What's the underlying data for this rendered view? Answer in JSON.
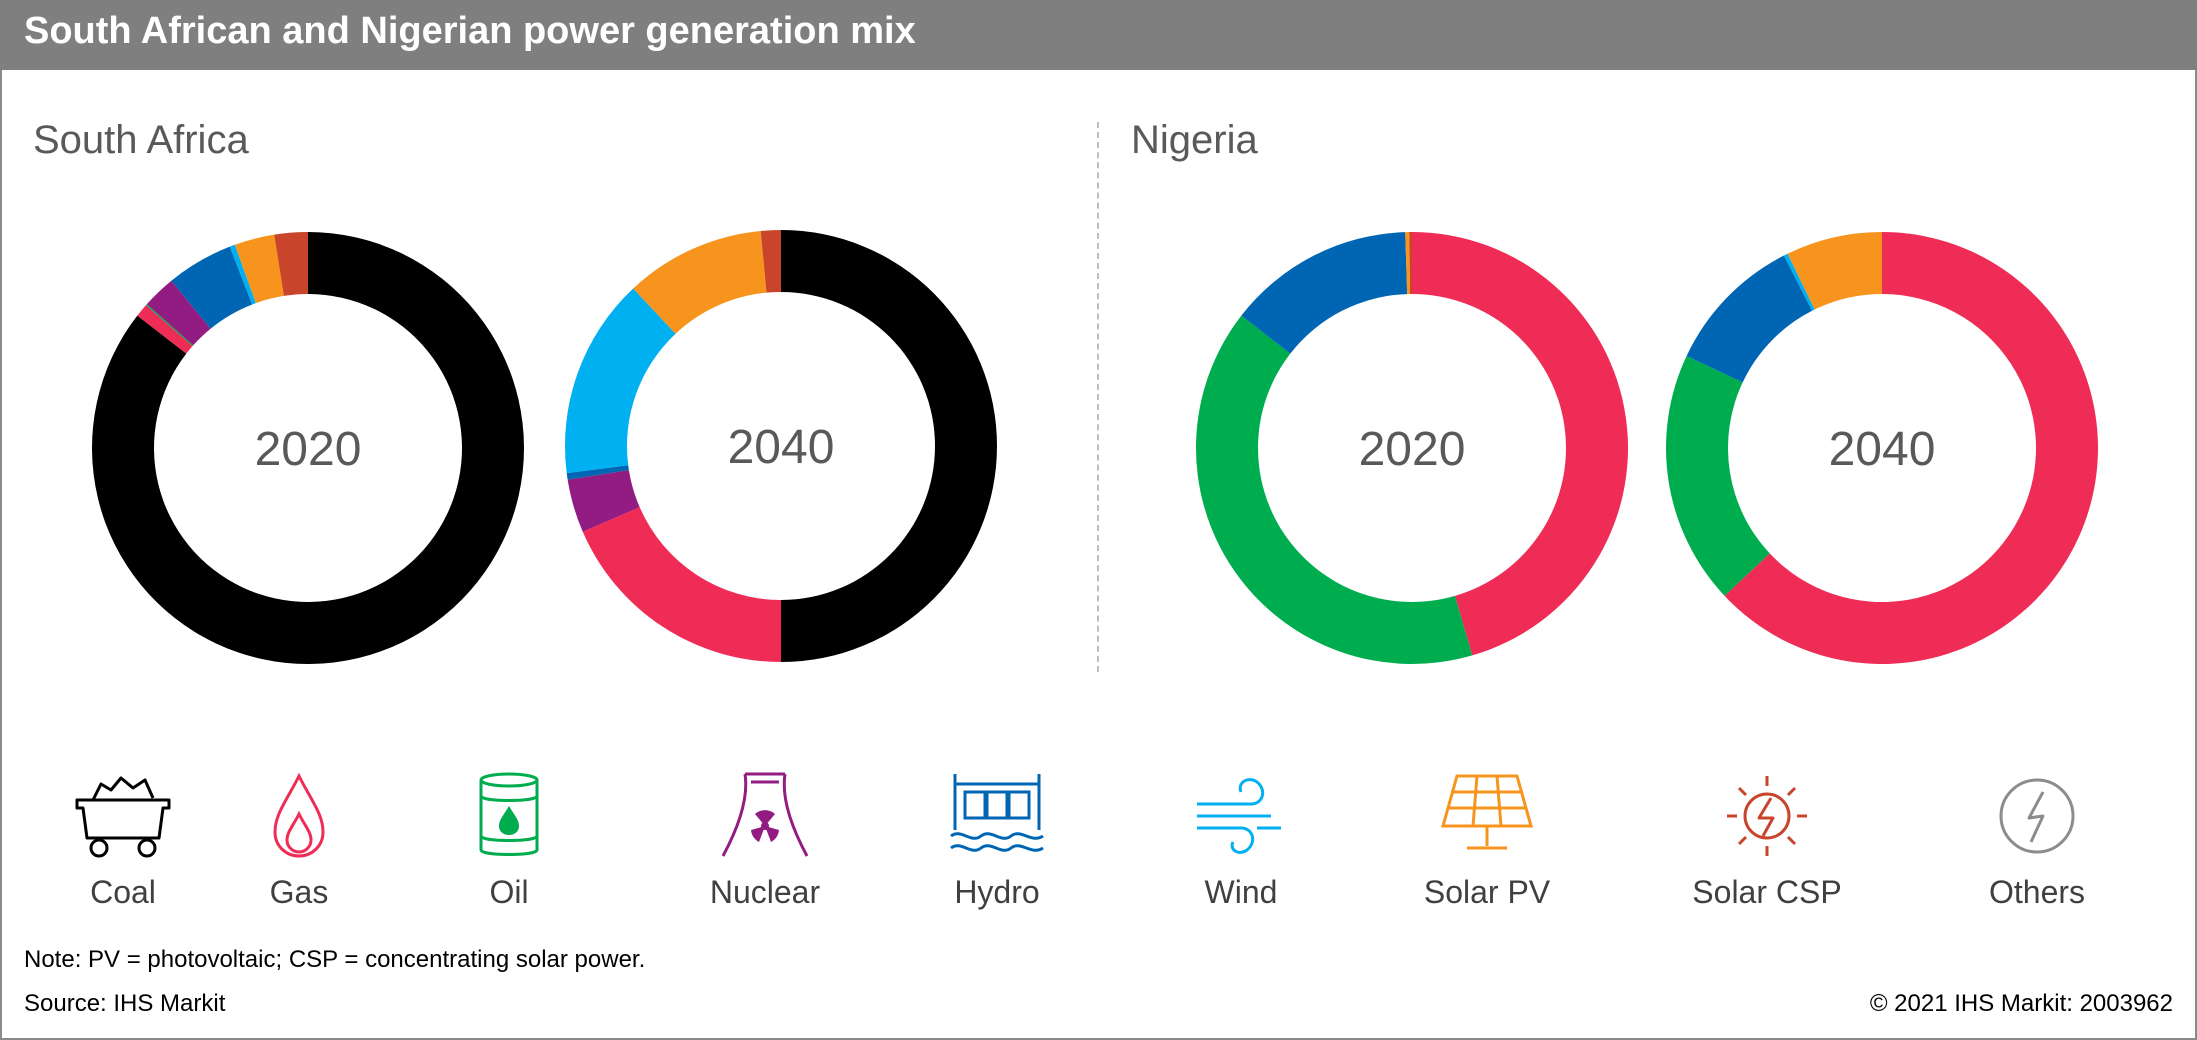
{
  "header": {
    "title": "South African and Nigerian power generation mix"
  },
  "panels": [
    {
      "title": "South Africa"
    },
    {
      "title": "Nigeria"
    }
  ],
  "chart_data": [
    {
      "type": "pie",
      "panel": "South Africa",
      "center_label": "2020",
      "slices": [
        {
          "name": "Coal",
          "value": 85.5
        },
        {
          "name": "Gas",
          "value": 1.0
        },
        {
          "name": "Oil",
          "value": 0.1
        },
        {
          "name": "Nuclear",
          "value": 2.5
        },
        {
          "name": "Hydro",
          "value": 5.0
        },
        {
          "name": "Wind",
          "value": 0.4
        },
        {
          "name": "Solar PV",
          "value": 3.0
        },
        {
          "name": "Solar CSP",
          "value": 2.5
        },
        {
          "name": "Others",
          "value": 0.0
        }
      ]
    },
    {
      "type": "pie",
      "panel": "South Africa",
      "center_label": "2040",
      "slices": [
        {
          "name": "Coal",
          "value": 50.0
        },
        {
          "name": "Gas",
          "value": 18.5
        },
        {
          "name": "Oil",
          "value": 0.0
        },
        {
          "name": "Nuclear",
          "value": 4.0
        },
        {
          "name": "Hydro",
          "value": 0.5
        },
        {
          "name": "Wind",
          "value": 15.0
        },
        {
          "name": "Solar PV",
          "value": 10.5
        },
        {
          "name": "Solar CSP",
          "value": 1.5
        },
        {
          "name": "Others",
          "value": 0.0
        }
      ]
    },
    {
      "type": "pie",
      "panel": "Nigeria",
      "center_label": "2020",
      "slices": [
        {
          "name": "Coal",
          "value": 0.0
        },
        {
          "name": "Gas",
          "value": 45.5
        },
        {
          "name": "Oil",
          "value": 40.0
        },
        {
          "name": "Nuclear",
          "value": 0.0
        },
        {
          "name": "Hydro",
          "value": 14.0
        },
        {
          "name": "Wind",
          "value": 0.0
        },
        {
          "name": "Solar PV",
          "value": 0.3
        },
        {
          "name": "Solar CSP",
          "value": 0.2
        },
        {
          "name": "Others",
          "value": 0.0
        }
      ]
    },
    {
      "type": "pie",
      "panel": "Nigeria",
      "center_label": "2040",
      "slices": [
        {
          "name": "Coal",
          "value": 0.0
        },
        {
          "name": "Gas",
          "value": 63.0
        },
        {
          "name": "Oil",
          "value": 19.0
        },
        {
          "name": "Nuclear",
          "value": 0.0
        },
        {
          "name": "Hydro",
          "value": 10.5
        },
        {
          "name": "Wind",
          "value": 0.3
        },
        {
          "name": "Solar PV",
          "value": 7.2
        },
        {
          "name": "Solar CSP",
          "value": 0.0
        },
        {
          "name": "Others",
          "value": 0.0
        }
      ]
    }
  ],
  "legend": [
    {
      "label": "Coal",
      "icon": "coal-cart-icon",
      "color": "#000000"
    },
    {
      "label": "Gas",
      "icon": "gas-flame-icon",
      "color": "#ef2c55"
    },
    {
      "label": "Oil",
      "icon": "oil-barrel-icon",
      "color": "#00ad4e"
    },
    {
      "label": "Nuclear",
      "icon": "nuclear-plant-icon",
      "color": "#921c81"
    },
    {
      "label": "Hydro",
      "icon": "hydro-dam-icon",
      "color": "#0066b3"
    },
    {
      "label": "Wind",
      "icon": "wind-icon",
      "color": "#00b0f0"
    },
    {
      "label": "Solar PV",
      "icon": "solar-panel-icon",
      "color": "#f7941d"
    },
    {
      "label": "Solar CSP",
      "icon": "solar-csp-icon",
      "color": "#c8442b"
    },
    {
      "label": "Others",
      "icon": "others-bolt-icon",
      "color": "#8c8c8c"
    }
  ],
  "footer": {
    "note": "Note: PV = photovoltaic; CSP = concentrating solar power.",
    "source": "Source: IHS Markit",
    "copyright": "© 2021 IHS Markit: 2003962"
  }
}
